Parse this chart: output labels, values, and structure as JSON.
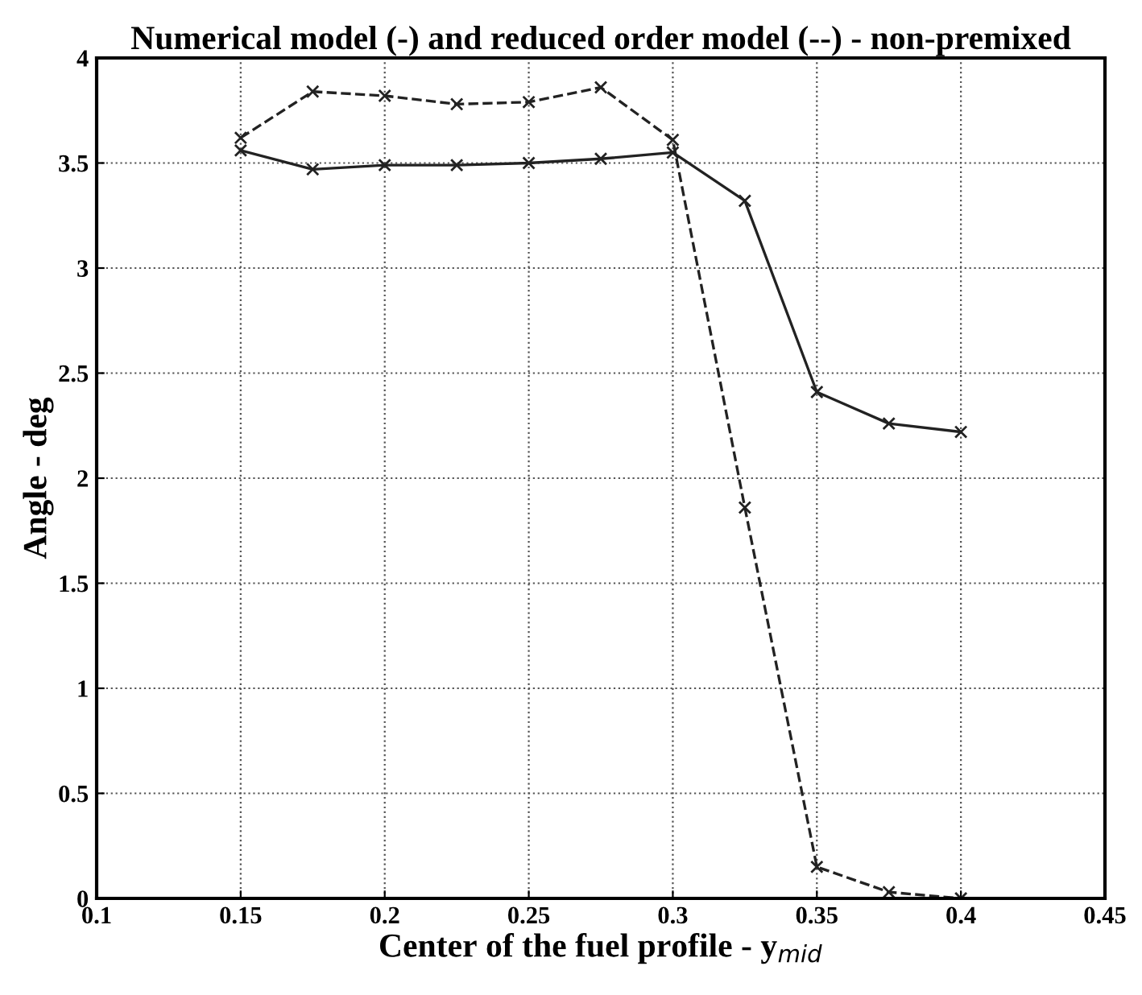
{
  "chart_data": {
    "type": "line",
    "title": "Numerical model (-) and reduced order model (--) - non-premixed",
    "xlabel": "Center of the fuel profile - y$_{mid}$",
    "ylabel": "Angle - deg",
    "x": [
      0.15,
      0.175,
      0.2,
      0.225,
      0.25,
      0.275,
      0.3,
      0.325,
      0.35,
      0.375,
      0.4
    ],
    "series": [
      {
        "color": "#222222",
        "line_style": "solid",
        "values": [
          3.56,
          3.47,
          3.49,
          3.49,
          3.5,
          3.52,
          3.55,
          3.32,
          2.41,
          2.26,
          2.22
        ]
      },
      {
        "color": "#222222",
        "line_style": "dashed",
        "values": [
          3.62,
          3.84,
          3.82,
          3.78,
          3.79,
          3.86,
          3.61,
          1.86,
          0.15,
          0.03,
          0.0
        ]
      }
    ],
    "marker": "cross",
    "grid": true,
    "xlim": [
      0.1,
      0.45
    ],
    "xticks": [
      0.1,
      0.15,
      0.2,
      0.25,
      0.3,
      0.35,
      0.4,
      0.45
    ],
    "ylim": [
      0,
      4
    ],
    "yticks": [
      0,
      0.5,
      1,
      1.5,
      2,
      2.5,
      3,
      3.5,
      4
    ]
  }
}
